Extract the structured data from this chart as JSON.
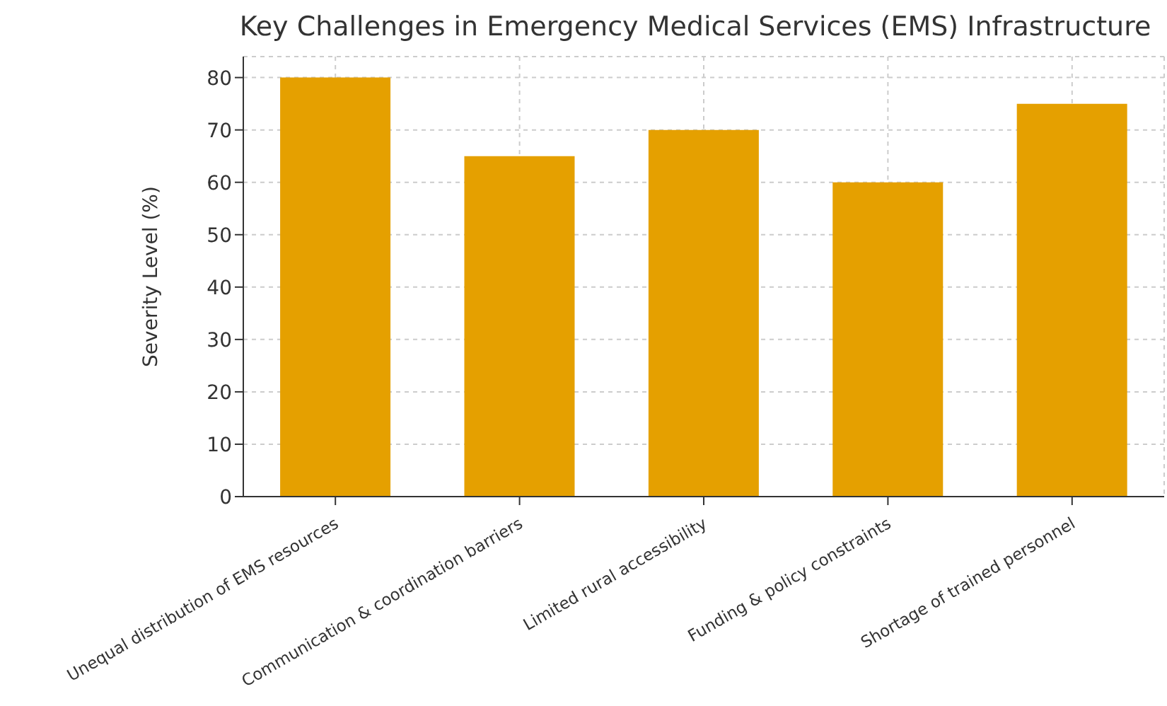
{
  "chart_data": {
    "type": "bar",
    "title": "Key Challenges in Emergency Medical Services (EMS) Infrastructure",
    "ylabel": "Severity Level (%)",
    "categories": [
      "Unequal distribution of EMS resources",
      "Communication & coordination barriers",
      "Limited rural accessibility",
      "Funding & policy constraints",
      "Shortage of trained personnel"
    ],
    "values": [
      80,
      65,
      70,
      60,
      75
    ],
    "color": "#e5a000",
    "ylim": [
      0,
      84
    ],
    "yticks": [
      0,
      10,
      20,
      30,
      40,
      50,
      60,
      70,
      80
    ],
    "grid": true
  }
}
